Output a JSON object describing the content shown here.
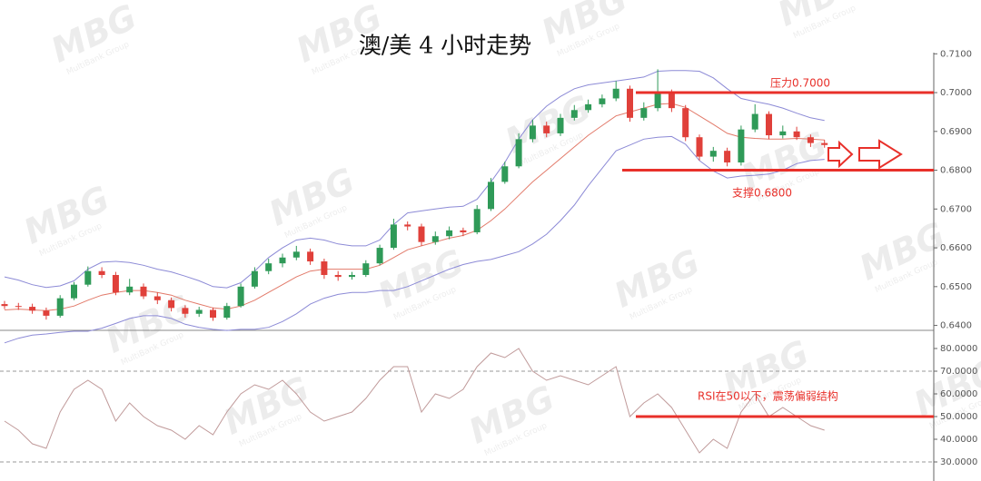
{
  "watermark": {
    "logo": "MBG",
    "text": "MultiBank Group"
  },
  "chart_data": [
    {
      "type": "candlestick",
      "title": "澳/美 4 小时走势",
      "open": [
        0.6455,
        0.645,
        0.6448,
        0.6438,
        0.6425,
        0.647,
        0.6505,
        0.654,
        0.653,
        0.6485,
        0.65,
        0.6475,
        0.6465,
        0.6445,
        0.643,
        0.644,
        0.642,
        0.645,
        0.65,
        0.654,
        0.656,
        0.6575,
        0.659,
        0.6565,
        0.653,
        0.6525,
        0.653,
        0.656,
        0.66,
        0.666,
        0.6655,
        0.6615,
        0.663,
        0.6645,
        0.664,
        0.67,
        0.677,
        0.681,
        0.688,
        0.6915,
        0.6895,
        0.6935,
        0.6955,
        0.697,
        0.6985,
        0.701,
        0.6935,
        0.696,
        0.7,
        0.696,
        0.6885,
        0.6835,
        0.685,
        0.682,
        0.6905,
        0.6945,
        0.689,
        0.69,
        0.6885,
        0.687
      ],
      "high": [
        0.6463,
        0.6458,
        0.6456,
        0.6446,
        0.6478,
        0.6512,
        0.6552,
        0.655,
        0.6538,
        0.652,
        0.6508,
        0.6485,
        0.6472,
        0.6452,
        0.6448,
        0.6446,
        0.6458,
        0.6508,
        0.655,
        0.6572,
        0.6585,
        0.6605,
        0.6598,
        0.6572,
        0.654,
        0.6538,
        0.6568,
        0.6608,
        0.6675,
        0.6668,
        0.6662,
        0.6642,
        0.6655,
        0.6652,
        0.671,
        0.678,
        0.6822,
        0.6895,
        0.693,
        0.6925,
        0.6945,
        0.6968,
        0.6982,
        0.6995,
        0.703,
        0.7018,
        0.6975,
        0.706,
        0.7008,
        0.6968,
        0.6892,
        0.686,
        0.6858,
        0.6915,
        0.697,
        0.6952,
        0.6915,
        0.6912,
        0.6892,
        0.6878
      ],
      "low": [
        0.6442,
        0.644,
        0.643,
        0.6415,
        0.642,
        0.6465,
        0.65,
        0.6522,
        0.6478,
        0.6478,
        0.6468,
        0.6455,
        0.6436,
        0.642,
        0.6422,
        0.6412,
        0.6415,
        0.6446,
        0.6495,
        0.6532,
        0.655,
        0.6568,
        0.6556,
        0.652,
        0.6515,
        0.6518,
        0.6525,
        0.6555,
        0.6595,
        0.6645,
        0.6605,
        0.6608,
        0.6622,
        0.663,
        0.6635,
        0.6695,
        0.6765,
        0.6805,
        0.6872,
        0.6885,
        0.6888,
        0.6928,
        0.6948,
        0.6962,
        0.6978,
        0.6925,
        0.6928,
        0.6952,
        0.695,
        0.6875,
        0.6825,
        0.6822,
        0.681,
        0.6812,
        0.6898,
        0.688,
        0.6882,
        0.6878,
        0.686,
        0.6858
      ],
      "close": [
        0.645,
        0.6448,
        0.6438,
        0.6425,
        0.647,
        0.6505,
        0.654,
        0.653,
        0.6485,
        0.65,
        0.6475,
        0.6465,
        0.6445,
        0.643,
        0.644,
        0.642,
        0.645,
        0.65,
        0.654,
        0.656,
        0.6575,
        0.659,
        0.6565,
        0.653,
        0.6525,
        0.653,
        0.656,
        0.66,
        0.666,
        0.6655,
        0.6615,
        0.663,
        0.6645,
        0.664,
        0.67,
        0.677,
        0.681,
        0.688,
        0.6915,
        0.6895,
        0.6935,
        0.6955,
        0.697,
        0.6985,
        0.701,
        0.6935,
        0.696,
        0.7,
        0.696,
        0.6885,
        0.6835,
        0.685,
        0.682,
        0.6905,
        0.6945,
        0.689,
        0.69,
        0.6885,
        0.687,
        0.6865
      ],
      "up_color": "#2f9a58",
      "down_color": "#e0403a",
      "bands": {
        "color": "#8c8ad6",
        "middle_color": "#e27a6a",
        "upper": [
          0.6525,
          0.6517,
          0.6505,
          0.6498,
          0.6502,
          0.6515,
          0.6545,
          0.6563,
          0.6565,
          0.6562,
          0.6555,
          0.6545,
          0.6538,
          0.6527,
          0.6515,
          0.65,
          0.6497,
          0.651,
          0.654,
          0.6575,
          0.66,
          0.662,
          0.6625,
          0.662,
          0.661,
          0.6605,
          0.6605,
          0.662,
          0.666,
          0.669,
          0.6695,
          0.67,
          0.6705,
          0.6707,
          0.6725,
          0.677,
          0.682,
          0.688,
          0.693,
          0.6965,
          0.699,
          0.701,
          0.702,
          0.7025,
          0.703,
          0.7035,
          0.704,
          0.7055,
          0.7057,
          0.7057,
          0.7055,
          0.7038,
          0.701,
          0.6985,
          0.6977,
          0.697,
          0.696,
          0.6947,
          0.6935,
          0.6928
        ],
        "middle": [
          0.644,
          0.6442,
          0.644,
          0.6438,
          0.6442,
          0.645,
          0.6465,
          0.6478,
          0.6485,
          0.649,
          0.649,
          0.6485,
          0.6478,
          0.6465,
          0.6455,
          0.6445,
          0.6442,
          0.645,
          0.6465,
          0.6485,
          0.6505,
          0.6525,
          0.654,
          0.6545,
          0.6545,
          0.6545,
          0.6545,
          0.6555,
          0.6575,
          0.6595,
          0.6605,
          0.6615,
          0.6625,
          0.6632,
          0.6645,
          0.667,
          0.67,
          0.6735,
          0.677,
          0.68,
          0.683,
          0.686,
          0.689,
          0.6915,
          0.694,
          0.695,
          0.696,
          0.697,
          0.6972,
          0.6962,
          0.694,
          0.6918,
          0.6895,
          0.6885,
          0.6882,
          0.688,
          0.688,
          0.6882,
          0.688,
          0.6878
        ],
        "lower": [
          0.6355,
          0.6367,
          0.6375,
          0.6378,
          0.6382,
          0.6385,
          0.6385,
          0.6393,
          0.6405,
          0.6418,
          0.6425,
          0.6425,
          0.6418,
          0.6403,
          0.6395,
          0.639,
          0.6387,
          0.639,
          0.639,
          0.6395,
          0.641,
          0.643,
          0.6455,
          0.647,
          0.648,
          0.6485,
          0.6485,
          0.649,
          0.649,
          0.65,
          0.6515,
          0.653,
          0.6545,
          0.6557,
          0.6565,
          0.657,
          0.658,
          0.659,
          0.661,
          0.6635,
          0.667,
          0.671,
          0.676,
          0.6805,
          0.685,
          0.6865,
          0.688,
          0.6885,
          0.6887,
          0.6867,
          0.6825,
          0.6798,
          0.678,
          0.6785,
          0.6787,
          0.679,
          0.68,
          0.6817,
          0.6825,
          0.6828
        ]
      },
      "ylim": [
        0.6392,
        0.7103
      ],
      "yticks": [
        {
          "value": 0.64,
          "label": "0.6400"
        },
        {
          "value": 0.65,
          "label": "0.6500"
        },
        {
          "value": 0.66,
          "label": "0.6600"
        },
        {
          "value": 0.67,
          "label": "0.6700"
        },
        {
          "value": 0.68,
          "label": "0.6800"
        },
        {
          "value": 0.69,
          "label": "0.6900"
        },
        {
          "value": 0.7,
          "label": "0.7000"
        },
        {
          "value": 0.71,
          "label": "0.7100"
        }
      ],
      "annotation_color": "#e8302a",
      "annotations": [
        {
          "text": "压力0.7000",
          "value": 0.7
        },
        {
          "text": "支撑0.6800",
          "value": 0.68
        }
      ]
    },
    {
      "type": "line",
      "values": [
        48,
        44,
        38,
        36,
        52,
        62,
        66,
        62,
        48,
        56,
        50,
        46,
        44,
        40,
        46,
        42,
        52,
        60,
        64,
        62,
        66,
        60,
        52,
        48,
        50,
        52,
        58,
        66,
        72,
        72,
        52,
        60,
        58,
        62,
        72,
        78,
        76,
        80,
        70,
        66,
        68,
        66,
        64,
        68,
        72,
        50,
        56,
        60,
        54,
        44,
        34,
        40,
        36,
        52,
        60,
        50,
        54,
        50,
        46,
        44
      ],
      "color": "#c09a9a",
      "ylim": [
        21.6,
        87.2
      ],
      "yticks": [
        {
          "value": 30,
          "label": "30.0000"
        },
        {
          "value": 40,
          "label": "40.0000"
        },
        {
          "value": 50,
          "label": "50.0000"
        },
        {
          "value": 60,
          "label": "60.0000"
        },
        {
          "value": 70,
          "label": "70.0000"
        },
        {
          "value": 80,
          "label": "80.0000"
        }
      ],
      "levels": [
        70,
        30
      ],
      "annotation_color": "#e8302a",
      "annotations": [
        {
          "text": "RSI在50以下，震荡偏弱结构",
          "value": 50
        }
      ]
    }
  ]
}
